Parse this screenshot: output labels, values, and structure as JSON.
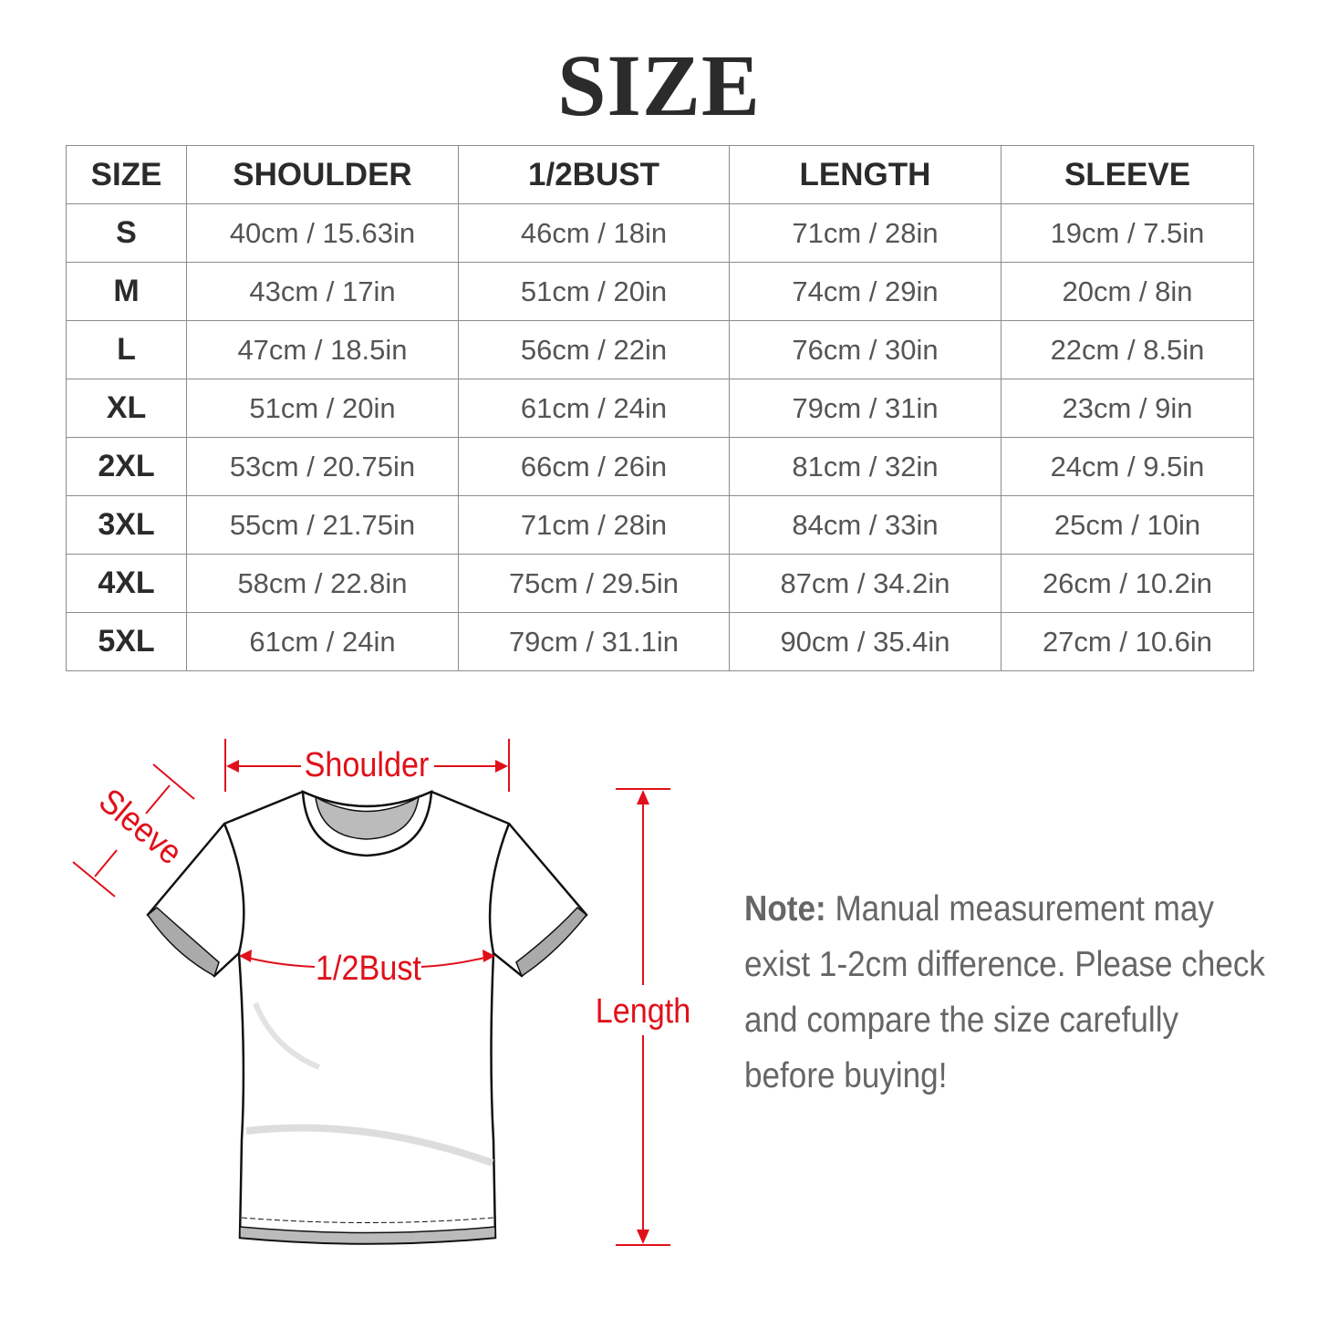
{
  "title": "SIZE",
  "table": {
    "headers": [
      "SIZE",
      "SHOULDER",
      "1/2BUST",
      "LENGTH",
      "SLEEVE"
    ],
    "rows": [
      [
        "S",
        "40cm / 15.63in",
        "46cm / 18in",
        "71cm / 28in",
        "19cm / 7.5in"
      ],
      [
        "M",
        "43cm / 17in",
        "51cm / 20in",
        "74cm / 29in",
        "20cm / 8in"
      ],
      [
        "L",
        "47cm / 18.5in",
        "56cm / 22in",
        "76cm / 30in",
        "22cm / 8.5in"
      ],
      [
        "XL",
        "51cm / 20in",
        "61cm / 24in",
        "79cm / 31in",
        "23cm / 9in"
      ],
      [
        "2XL",
        "53cm / 20.75in",
        "66cm / 26in",
        "81cm / 32in",
        "24cm / 9.5in"
      ],
      [
        "3XL",
        "55cm / 21.75in",
        "71cm / 28in",
        "84cm / 33in",
        "25cm / 10in"
      ],
      [
        "4XL",
        "58cm / 22.8in",
        "75cm / 29.5in",
        "87cm / 34.2in",
        "26cm / 10.2in"
      ],
      [
        "5XL",
        "61cm / 24in",
        "79cm / 31.1in",
        "90cm / 35.4in",
        "27cm / 10.6in"
      ]
    ]
  },
  "diagram": {
    "shoulder": "Shoulder",
    "sleeve": "Sleeve",
    "bust": "1/2Bust",
    "length": "Length",
    "accent_color": "#e0101a"
  },
  "note": {
    "label": "Note:",
    "text": " Manual measurement may exist 1-2cm difference. Please check and compare the size carefully before buying!"
  }
}
